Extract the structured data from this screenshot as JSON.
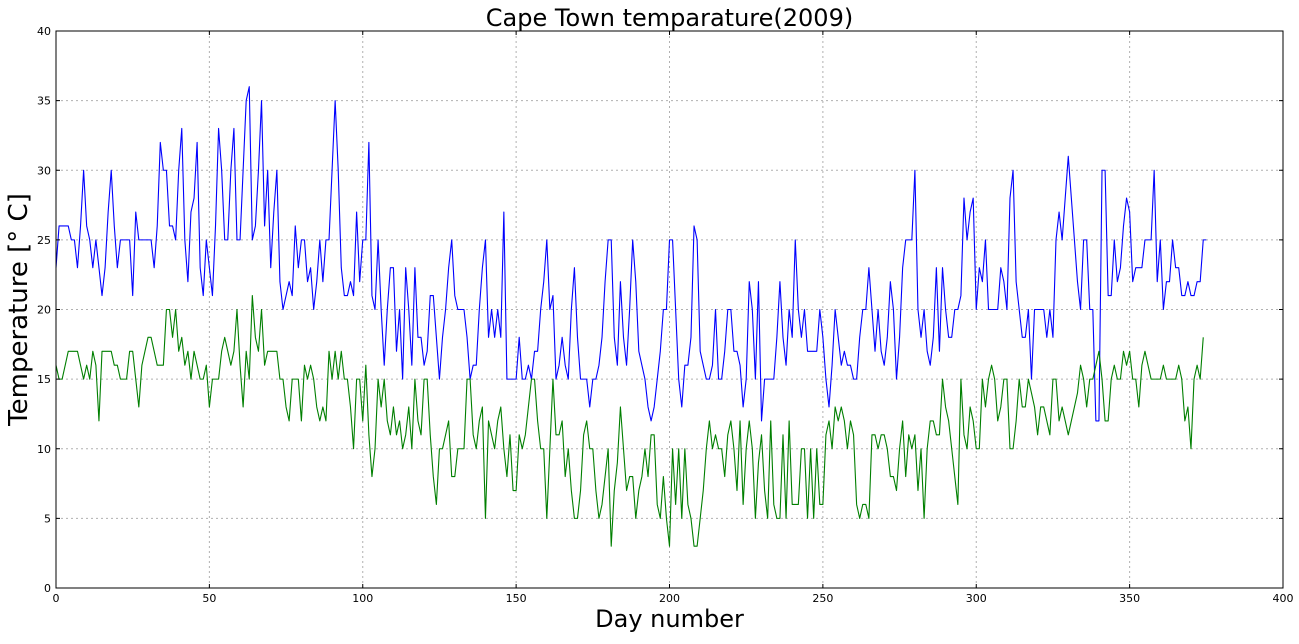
{
  "chart_data": {
    "type": "line",
    "title": "Cape Town temparature(2009)",
    "xlabel": "Day number",
    "ylabel": "Temperature [° C]",
    "xlim": [
      0,
      400
    ],
    "ylim": [
      0,
      40
    ],
    "xticks": [
      0,
      50,
      100,
      150,
      200,
      250,
      300,
      350,
      400
    ],
    "yticks": [
      0,
      5,
      10,
      15,
      20,
      25,
      30,
      35,
      40
    ],
    "grid": true,
    "series": [
      {
        "color": "#0000ff",
        "x_start": 0,
        "values": [
          23,
          26,
          26,
          26,
          26,
          25,
          25,
          23,
          26,
          30,
          26,
          25,
          23,
          25,
          23,
          21,
          23,
          27,
          30,
          26,
          23,
          25,
          25,
          25,
          25,
          21,
          27,
          25,
          25,
          25,
          25,
          25,
          23,
          26,
          32,
          30,
          30,
          26,
          26,
          25,
          30,
          33,
          25,
          22,
          27,
          28,
          32,
          23,
          21,
          25,
          23,
          21,
          26,
          33,
          30,
          25,
          25,
          30,
          33,
          25,
          25,
          30,
          35,
          36,
          25,
          26,
          30,
          35,
          26,
          30,
          23,
          27,
          30,
          22,
          20,
          21,
          22,
          21,
          26,
          23,
          25,
          25,
          22,
          23,
          20,
          22,
          25,
          22,
          25,
          25,
          30,
          35,
          30,
          23,
          21,
          21,
          22,
          21,
          27,
          22,
          25,
          25,
          32,
          21,
          20,
          25,
          20,
          16,
          20,
          23,
          23,
          17,
          20,
          15,
          23,
          20,
          16,
          23,
          18,
          18,
          16,
          17,
          21,
          21,
          18,
          15,
          18,
          20,
          23,
          25,
          21,
          20,
          20,
          20,
          18,
          15,
          16,
          16,
          20,
          23,
          25,
          18,
          20,
          18,
          20,
          18,
          27,
          15,
          15,
          15,
          15,
          18,
          15,
          15,
          16,
          15,
          17,
          17,
          20,
          22,
          25,
          20,
          21,
          15,
          16,
          18,
          16,
          15,
          20,
          23,
          18,
          15,
          15,
          15,
          13,
          15,
          15,
          16,
          18,
          22,
          25,
          25,
          18,
          16,
          22,
          18,
          16,
          20,
          25,
          22,
          17,
          16,
          15,
          13,
          12,
          13,
          15,
          17,
          20,
          20,
          25,
          25,
          20,
          15,
          13,
          16,
          16,
          18,
          26,
          25,
          17,
          16,
          15,
          15,
          16,
          20,
          15,
          15,
          17,
          20,
          20,
          17,
          17,
          16,
          13,
          15,
          22,
          20,
          15,
          22,
          12,
          15,
          15,
          15,
          15,
          18,
          22,
          18,
          16,
          20,
          18,
          25,
          20,
          18,
          20,
          17,
          17,
          17,
          17,
          20,
          18,
          15,
          13,
          16,
          20,
          18,
          16,
          17,
          16,
          16,
          15,
          15,
          18,
          20,
          20,
          23,
          20,
          17,
          20,
          17,
          16,
          18,
          22,
          20,
          15,
          18,
          23,
          25,
          25,
          25,
          30,
          20,
          18,
          20,
          17,
          16,
          18,
          23,
          17,
          23,
          20,
          18,
          18,
          20,
          20,
          21,
          28,
          25,
          27,
          28,
          20,
          23,
          22,
          25,
          20,
          20,
          20,
          20,
          23,
          22,
          20,
          28,
          30,
          22,
          20,
          18,
          18,
          20,
          15,
          20,
          20,
          20,
          20,
          18,
          20,
          18,
          25,
          27,
          25,
          28,
          31,
          28,
          25,
          22,
          20,
          25,
          25,
          20,
          20,
          12,
          12,
          30,
          30,
          21,
          21,
          25,
          22,
          23,
          26,
          28,
          27,
          22,
          23,
          23,
          23,
          25,
          25,
          25,
          30,
          22,
          25,
          20,
          22,
          22,
          25,
          23,
          23,
          21,
          21,
          22,
          21,
          21,
          22,
          22,
          25,
          25
        ]
      },
      {
        "color": "#007f00",
        "x_start": 0,
        "values": [
          16,
          15,
          15,
          16,
          17,
          17,
          17,
          17,
          16,
          15,
          16,
          15,
          17,
          16,
          12,
          17,
          17,
          17,
          17,
          16,
          16,
          15,
          15,
          15,
          17,
          17,
          15,
          13,
          16,
          17,
          18,
          18,
          17,
          16,
          16,
          16,
          20,
          20,
          18,
          20,
          17,
          18,
          16,
          17,
          15,
          17,
          16,
          15,
          15,
          16,
          13,
          15,
          15,
          15,
          17,
          18,
          17,
          16,
          17,
          20,
          16,
          13,
          17,
          15,
          21,
          18,
          17,
          20,
          16,
          17,
          17,
          17,
          17,
          15,
          15,
          13,
          12,
          15,
          15,
          15,
          12,
          16,
          15,
          16,
          15,
          13,
          12,
          13,
          12,
          17,
          15,
          17,
          15,
          17,
          15,
          15,
          13,
          10,
          15,
          15,
          12,
          16,
          11,
          8,
          10,
          15,
          13,
          15,
          12,
          11,
          13,
          11,
          12,
          10,
          11,
          13,
          10,
          15,
          12,
          11,
          15,
          15,
          11,
          8,
          6,
          10,
          10,
          11,
          12,
          8,
          8,
          10,
          10,
          10,
          15,
          15,
          11,
          10,
          12,
          13,
          5,
          12,
          11,
          10,
          12,
          13,
          10,
          8,
          11,
          7,
          7,
          11,
          10,
          11,
          13,
          15,
          15,
          12,
          10,
          10,
          5,
          10,
          15,
          11,
          11,
          12,
          8,
          10,
          7,
          5,
          5,
          7,
          11,
          12,
          10,
          10,
          7,
          5,
          6,
          8,
          10,
          3,
          7,
          9,
          13,
          10,
          7,
          8,
          8,
          5,
          7,
          8,
          10,
          8,
          11,
          11,
          6,
          5,
          8,
          5,
          3,
          10,
          6,
          10,
          5,
          10,
          6,
          5,
          3,
          3,
          5,
          7,
          10,
          12,
          10,
          11,
          10,
          10,
          8,
          11,
          12,
          10,
          7,
          12,
          6,
          10,
          12,
          10,
          5,
          9,
          11,
          7,
          5,
          12,
          6,
          5,
          5,
          11,
          5,
          12,
          6,
          6,
          6,
          10,
          10,
          5,
          10,
          5,
          10,
          6,
          6,
          11,
          12,
          10,
          13,
          12,
          13,
          12,
          10,
          12,
          11,
          6,
          5,
          6,
          6,
          5,
          11,
          11,
          10,
          11,
          11,
          10,
          8,
          8,
          7,
          10,
          12,
          8,
          11,
          10,
          11,
          7,
          10,
          5,
          10,
          12,
          12,
          11,
          11,
          15,
          13,
          12,
          10,
          8,
          6,
          15,
          11,
          10,
          13,
          12,
          10,
          10,
          15,
          13,
          15,
          16,
          15,
          12,
          13,
          15,
          15,
          10,
          10,
          12,
          15,
          13,
          13,
          15,
          14,
          13,
          11,
          13,
          13,
          12,
          11,
          15,
          15,
          12,
          13,
          12,
          11,
          12,
          13,
          14,
          16,
          15,
          13,
          15,
          15,
          16,
          17,
          15,
          12,
          12,
          15,
          16,
          15,
          15,
          17,
          16,
          17,
          15,
          15,
          13,
          16,
          17,
          16,
          15,
          15,
          15,
          15,
          16,
          15,
          15,
          15,
          15,
          16,
          15,
          12,
          13,
          10,
          15,
          16,
          15,
          18
        ]
      }
    ]
  }
}
